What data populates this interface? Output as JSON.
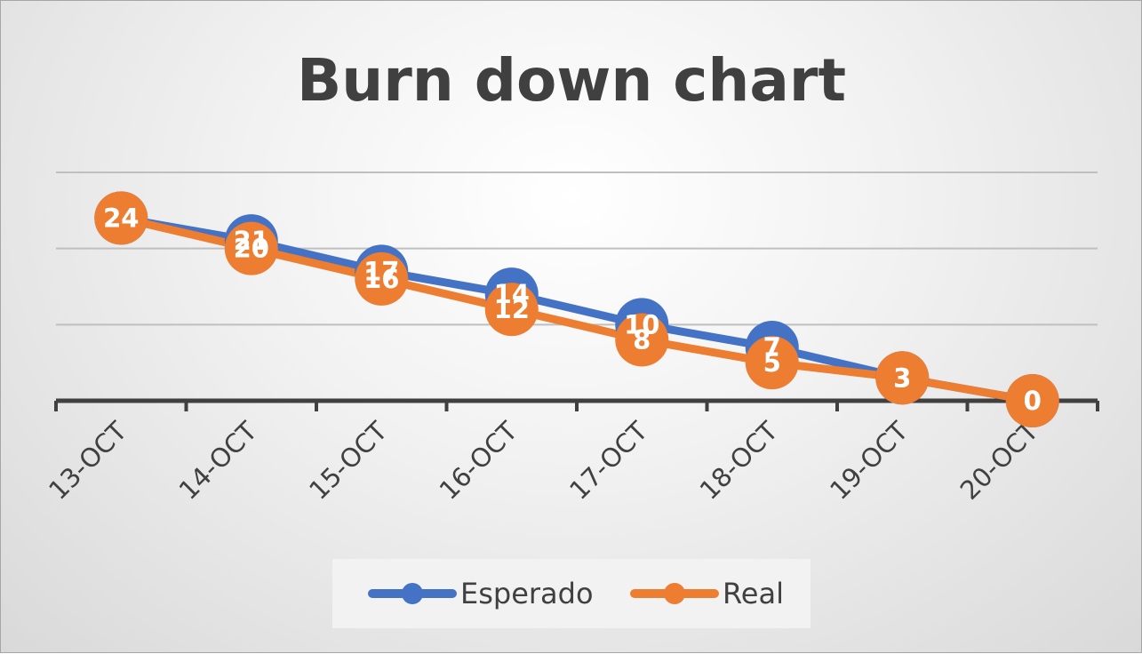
{
  "chart_data": {
    "type": "line",
    "title": "Burn down chart",
    "categories": [
      "13-OCT",
      "14-OCT",
      "15-OCT",
      "16-OCT",
      "17-OCT",
      "18-OCT",
      "19-OCT",
      "20-OCT"
    ],
    "series": [
      {
        "name": "Esperado",
        "values": [
          24,
          21,
          17,
          14,
          10,
          7,
          3,
          0
        ],
        "color": "#4472c4"
      },
      {
        "name": "Real",
        "values": [
          24,
          20,
          16,
          12,
          8,
          5,
          3,
          0
        ],
        "color": "#ed7d31"
      }
    ],
    "ylim": [
      0,
      30
    ],
    "grid": true,
    "data_labels": true,
    "legend_position": "bottom"
  },
  "legend": {
    "items": [
      {
        "label": "Esperado",
        "color": "#4472c4"
      },
      {
        "label": "Real",
        "color": "#ed7d31"
      }
    ]
  }
}
